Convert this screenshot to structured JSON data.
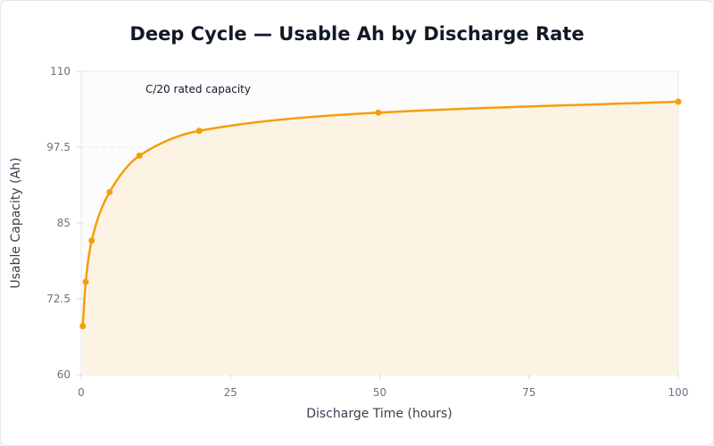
{
  "chart_data": {
    "type": "area",
    "title": "Deep Cycle — Usable Ah by Discharge Rate",
    "xlabel": "Discharge Time (hours)",
    "ylabel": "Usable Capacity (Ah)",
    "xlim": [
      0,
      100
    ],
    "ylim": [
      60,
      110
    ],
    "x_ticks": [
      "0",
      "25",
      "50",
      "75",
      "100"
    ],
    "y_ticks": [
      "60",
      "72.5",
      "85",
      "97.5",
      "110"
    ],
    "grid": true,
    "annotation": "C/20 rated capacity",
    "colors": {
      "line": "#f59e0b",
      "fill": "#fdf2e2",
      "point": "#f59e0b",
      "grid": "#e5e7eb"
    },
    "series": [
      {
        "x": [
          0.25,
          0.75,
          1.75,
          4.75,
          9.75,
          19.75,
          49.75,
          100
        ],
        "values": [
          68,
          75.3,
          82.1,
          90.1,
          96.1,
          100.2,
          103.2,
          105
        ]
      }
    ]
  }
}
